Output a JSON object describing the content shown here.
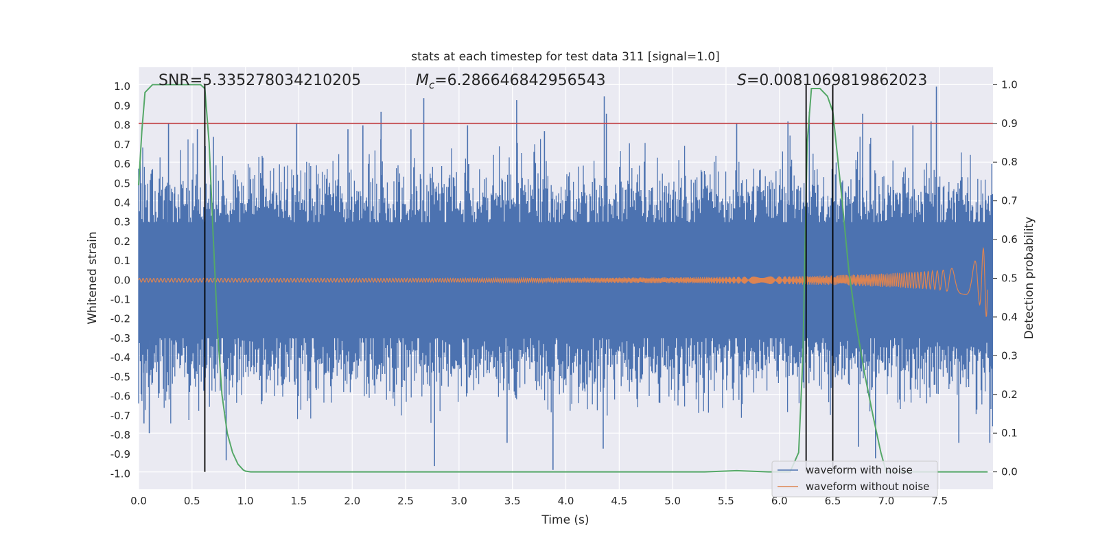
{
  "chart_data": {
    "type": "line",
    "title": "stats at each timestep for test data 311 [signal=1.0]",
    "xlabel": "Time (s)",
    "ylabel": "Whitened strain",
    "ylabel_right": "Detection probability",
    "xlim": [
      0.0,
      8.0
    ],
    "ylim": [
      -1.08,
      1.1
    ],
    "ylim_right": [
      -0.045,
      1.045
    ],
    "x_ticks": [
      "0.0",
      "0.5",
      "1.0",
      "1.5",
      "2.0",
      "2.5",
      "3.0",
      "3.5",
      "4.0",
      "4.5",
      "5.0",
      "5.5",
      "6.0",
      "6.5",
      "7.0",
      "7.5"
    ],
    "y_ticks": [
      "1.0",
      "0.9",
      "0.8",
      "0.7",
      "0.6",
      "0.5",
      "0.4",
      "0.3",
      "0.2",
      "0.1",
      "0.0",
      "-0.1",
      "-0.2",
      "-0.3",
      "-0.4",
      "-0.5",
      "-0.6",
      "-0.7",
      "-0.8",
      "-0.9",
      "-1.0"
    ],
    "y_ticks_right": [
      "1.0",
      "0.9",
      "0.8",
      "0.7",
      "0.6",
      "0.5",
      "0.4",
      "0.3",
      "0.2",
      "0.1",
      "0.0"
    ],
    "annotations": {
      "snr": "SNR=5.335278034210205",
      "mc_prefix": "M",
      "mc_sub": "c",
      "mc_value": "=6.286646842956543",
      "s_prefix": "S",
      "s_value": "=0.0081069819862023"
    },
    "threshold": {
      "value": 0.9,
      "axis": "right",
      "color": "#c44e52"
    },
    "vertical_markers": [
      0.62,
      6.25,
      6.5
    ],
    "noise_series": {
      "name": "waveform with noise",
      "color": "#4c72b0",
      "band_upper": 0.45,
      "band_lower": -0.45,
      "spike_max": 1.0,
      "spike_min": -0.98,
      "spikes": [
        [
          0.28,
          0.81
        ],
        [
          0.55,
          0.78
        ],
        [
          0.7,
          0.74
        ],
        [
          1.48,
          0.81
        ],
        [
          1.96,
          0.78
        ],
        [
          2.1,
          0.8
        ],
        [
          2.27,
          0.87
        ],
        [
          2.55,
          0.78
        ],
        [
          2.67,
          0.94
        ],
        [
          3.08,
          0.8
        ],
        [
          3.54,
          0.93
        ],
        [
          3.8,
          0.77
        ],
        [
          4.36,
          0.95
        ],
        [
          4.38,
          0.86
        ],
        [
          5.6,
          0.81
        ],
        [
          6.08,
          0.82
        ],
        [
          6.28,
          0.87
        ],
        [
          6.78,
          0.86
        ],
        [
          7.25,
          0.8
        ],
        [
          7.42,
          0.82
        ],
        [
          7.47,
          1.0
        ],
        [
          0.05,
          -0.74
        ],
        [
          0.1,
          -0.79
        ],
        [
          0.82,
          -0.93
        ],
        [
          2.77,
          -0.96
        ],
        [
          3.45,
          -0.84
        ],
        [
          3.88,
          -0.98
        ],
        [
          4.35,
          -0.87
        ],
        [
          6.74,
          -0.86
        ],
        [
          6.9,
          -0.92
        ],
        [
          7.68,
          -0.84
        ],
        [
          7.97,
          -0.84
        ]
      ]
    },
    "clean_series": {
      "name": "waveform without noise",
      "color": "#dd8452",
      "x": [
        0.0,
        1.0,
        2.0,
        3.0,
        4.0,
        5.0,
        6.0,
        6.5,
        7.0,
        7.5,
        7.8,
        7.88,
        7.92,
        7.95
      ],
      "envelope": [
        0.01,
        0.01,
        0.01,
        0.01,
        0.012,
        0.015,
        0.02,
        0.025,
        0.035,
        0.05,
        0.08,
        0.13,
        0.18,
        0.2
      ]
    },
    "probability_series": {
      "name": "detection probability",
      "color": "#55a868",
      "axis": "right",
      "x": [
        0.0,
        0.03,
        0.06,
        0.13,
        0.2,
        0.3,
        0.4,
        0.5,
        0.58,
        0.62,
        0.66,
        0.7,
        0.74,
        0.78,
        0.83,
        0.88,
        0.93,
        0.98,
        1.0,
        1.05,
        1.5,
        2.5,
        3.5,
        4.5,
        5.3,
        5.6,
        5.9,
        6.1,
        6.18,
        6.22,
        6.26,
        6.3,
        6.38,
        6.45,
        6.5,
        6.58,
        6.65,
        6.72,
        6.8,
        6.88,
        6.95,
        7.0,
        7.5,
        7.95
      ],
      "values": [
        0.74,
        0.88,
        0.98,
        1.0,
        1.0,
        1.0,
        1.0,
        1.0,
        1.0,
        0.99,
        0.85,
        0.6,
        0.36,
        0.2,
        0.1,
        0.05,
        0.02,
        0.005,
        0.002,
        0.0,
        0.0,
        0.0,
        0.0,
        0.0,
        0.0,
        0.003,
        0.0,
        0.0,
        0.05,
        0.3,
        0.85,
        0.99,
        0.99,
        0.97,
        0.93,
        0.72,
        0.52,
        0.38,
        0.25,
        0.14,
        0.05,
        0.0,
        0.0,
        0.0
      ]
    },
    "legend": {
      "placement": "lower-right",
      "entries": [
        {
          "label": "waveform with noise",
          "color": "#4c72b0"
        },
        {
          "label": "waveform without noise",
          "color": "#dd8452"
        }
      ]
    }
  }
}
